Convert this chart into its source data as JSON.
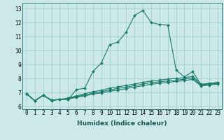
{
  "xlabel": "Humidex (Indice chaleur)",
  "ylabel": "",
  "bg_color": "#cce8e8",
  "grid_color": "#99cccc",
  "line_color": "#1a7a6a",
  "xlim": [
    -0.5,
    23.5
  ],
  "ylim": [
    5.8,
    13.4
  ],
  "yticks": [
    6,
    7,
    8,
    9,
    10,
    11,
    12,
    13
  ],
  "xtick_labels": [
    "0",
    "1",
    "2",
    "3",
    "4",
    "5",
    "6",
    "7",
    "8",
    "9",
    "10",
    "11",
    "12",
    "13",
    "14",
    "15",
    "16",
    "17",
    "18",
    "19",
    "20",
    "21",
    "22",
    "23"
  ],
  "series1_x": [
    0,
    1,
    2,
    3,
    4,
    5,
    6,
    7,
    8,
    9,
    10,
    11,
    12,
    13,
    14,
    15,
    16,
    17,
    18,
    19,
    20,
    21,
    22,
    23
  ],
  "series1_y": [
    6.9,
    6.4,
    6.8,
    6.4,
    6.5,
    6.5,
    7.2,
    7.3,
    8.5,
    9.1,
    10.4,
    10.6,
    11.3,
    12.5,
    12.85,
    12.0,
    11.85,
    11.8,
    8.6,
    8.1,
    8.5,
    7.55,
    7.6,
    7.7
  ],
  "series2_x": [
    0,
    1,
    2,
    3,
    4,
    5,
    6,
    7,
    8,
    9,
    10,
    11,
    12,
    13,
    14,
    15,
    16,
    17,
    18,
    19,
    20,
    21,
    22,
    23
  ],
  "series2_y": [
    6.9,
    6.4,
    6.8,
    6.45,
    6.5,
    6.6,
    6.75,
    6.9,
    7.05,
    7.15,
    7.3,
    7.4,
    7.5,
    7.6,
    7.72,
    7.82,
    7.88,
    7.95,
    8.0,
    8.05,
    8.15,
    7.58,
    7.65,
    7.72
  ],
  "series3_x": [
    0,
    1,
    2,
    3,
    4,
    5,
    6,
    7,
    8,
    9,
    10,
    11,
    12,
    13,
    14,
    15,
    16,
    17,
    18,
    19,
    20,
    21,
    22,
    23
  ],
  "series3_y": [
    6.9,
    6.4,
    6.8,
    6.45,
    6.5,
    6.55,
    6.7,
    6.82,
    6.95,
    7.05,
    7.18,
    7.28,
    7.38,
    7.48,
    7.6,
    7.7,
    7.76,
    7.82,
    7.88,
    7.94,
    8.04,
    7.52,
    7.58,
    7.65
  ],
  "series4_x": [
    0,
    1,
    2,
    3,
    4,
    5,
    6,
    7,
    8,
    9,
    10,
    11,
    12,
    13,
    14,
    15,
    16,
    17,
    18,
    19,
    20,
    21,
    22,
    23
  ],
  "series4_y": [
    6.9,
    6.4,
    6.8,
    6.45,
    6.5,
    6.52,
    6.65,
    6.75,
    6.88,
    6.97,
    7.08,
    7.17,
    7.27,
    7.37,
    7.48,
    7.58,
    7.65,
    7.72,
    7.78,
    7.84,
    7.94,
    7.46,
    7.52,
    7.6
  ],
  "tick_fontsize": 5.5,
  "label_fontsize": 6.5,
  "lw": 0.8,
  "ms": 2.0
}
